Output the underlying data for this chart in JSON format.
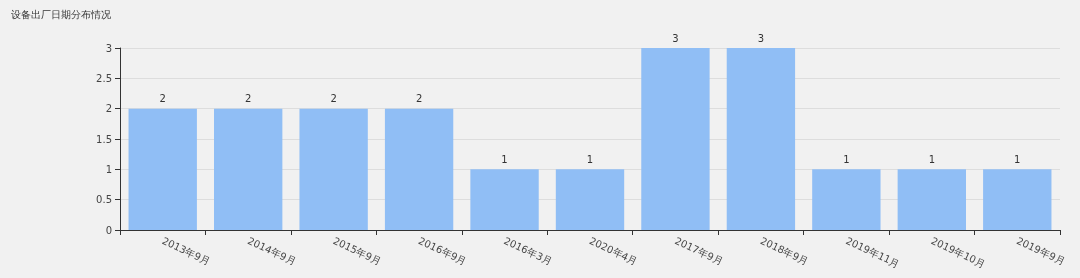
{
  "chart_data": {
    "type": "bar",
    "title": "设备出厂日期分布情况",
    "categories": [
      "2013年9月",
      "2014年9月",
      "2015年9月",
      "2016年9月",
      "2016年3月",
      "2020年4月",
      "2017年9月",
      "2018年9月",
      "2019年11月",
      "2019年10月",
      "2019年9月"
    ],
    "values": [
      2,
      2,
      2,
      2,
      1,
      1,
      3,
      3,
      1,
      1,
      1
    ],
    "color": "#90bef5",
    "ylim": [
      0,
      3
    ],
    "yticks": [
      0,
      0.5,
      1,
      1.5,
      2,
      2.5,
      3
    ],
    "grid": "y",
    "data_labels": true
  }
}
